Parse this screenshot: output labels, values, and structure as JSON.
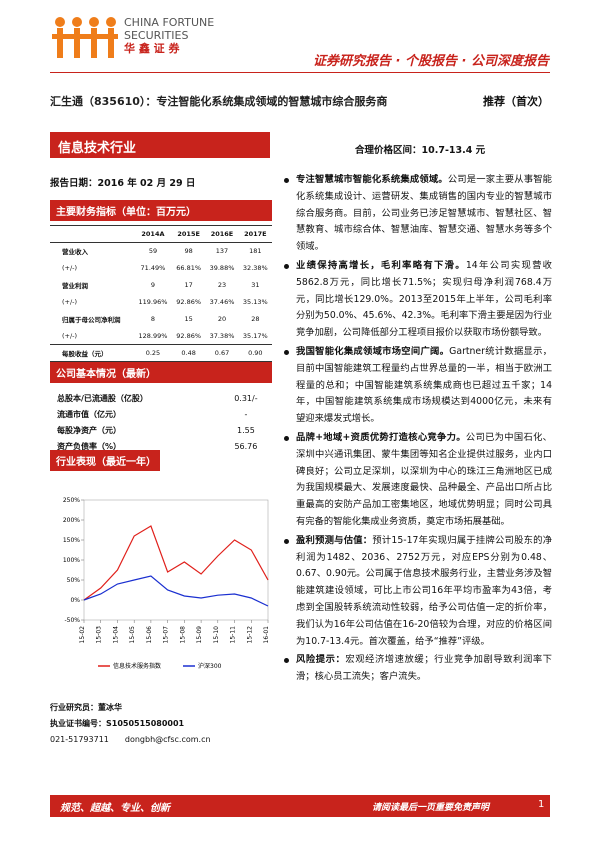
{
  "header": {
    "logo_en_1": "CHINA FORTUNE",
    "logo_en_2": "SECURITIES",
    "logo_cn": "华 鑫 证 券",
    "report_type": "证券研究报告 · 个股报告 · 公司深度报告"
  },
  "title": "汇生通（835610）：专注智能化系统集成领域的智慧城市综合服务商",
  "rating": "推荐（首次）",
  "industry": "信息技术行业",
  "price_range": "合理价格区间：10.7-13.4 元",
  "report_date": "报告日期：2016 年 02 月 29 日",
  "financials": {
    "heading": "主要财务指标（单位：百万元）",
    "columns": [
      "2014A",
      "2015E",
      "2016E",
      "2017E"
    ],
    "rows": [
      {
        "label": "营业收入",
        "cells": [
          "59",
          "98",
          "137",
          "181"
        ]
      },
      {
        "label": "(+/-)",
        "cells": [
          "71.49%",
          "66.81%",
          "39.88%",
          "32.38%"
        ]
      },
      {
        "label": "营业利润",
        "cells": [
          "9",
          "17",
          "23",
          "31"
        ]
      },
      {
        "label": "(+/-)",
        "cells": [
          "119.96%",
          "92.86%",
          "37.46%",
          "35.13%"
        ]
      },
      {
        "label": "归属于母公司净利润",
        "cells": [
          "8",
          "15",
          "20",
          "28"
        ]
      },
      {
        "label": "(+/-)",
        "cells": [
          "128.99%",
          "92.86%",
          "37.38%",
          "35.17%"
        ]
      },
      {
        "label": "每股收益（元）",
        "cells": [
          "0.25",
          "0.48",
          "0.67",
          "0.90"
        ]
      }
    ]
  },
  "basic": {
    "heading": "公司基本情况（最新）",
    "rows": [
      {
        "label": "总股本/已流通股（亿股）",
        "value": "0.31/-"
      },
      {
        "label": "流通市值（亿元）",
        "value": "-"
      },
      {
        "label": "每股净资产（元）",
        "value": "1.55"
      },
      {
        "label": "资产负债率（%）",
        "value": "56.76"
      }
    ]
  },
  "performance": {
    "heading": "行业表现（最近一年）",
    "chart": {
      "type": "line",
      "categories": [
        "15-02",
        "15-03",
        "15-04",
        "15-05",
        "15-06",
        "15-07",
        "15-08",
        "15-09",
        "15-10",
        "15-11",
        "15-12",
        "16-01"
      ],
      "series": [
        {
          "name": "信息技术服务指数",
          "color": "#e0201b",
          "values": [
            0,
            30,
            75,
            160,
            185,
            70,
            95,
            65,
            110,
            150,
            125,
            50
          ]
        },
        {
          "name": "沪深300",
          "color": "#1a2fd0",
          "values": [
            0,
            15,
            40,
            50,
            60,
            25,
            10,
            5,
            12,
            15,
            5,
            -15
          ]
        }
      ],
      "ylim": [
        -50,
        250
      ],
      "yticks": [
        {
          "value": -50,
          "label": "-50%"
        },
        {
          "value": 0,
          "label": "0%"
        },
        {
          "value": 50,
          "label": "50%"
        },
        {
          "value": 100,
          "label": "100%"
        },
        {
          "value": 150,
          "label": "150%"
        },
        {
          "value": 200,
          "label": "200%"
        },
        {
          "value": 250,
          "label": "250%"
        }
      ]
    }
  },
  "analyst": [
    "行业研究员：董冰华",
    "执业证书编号：S1050515080001",
    "021-51793711　　dongbh@cfsc.com.cn"
  ],
  "bullets": [
    {
      "lead": "专注智慧城市智能化系统集成领域。",
      "text": "公司是一家主要从事智能化系统集成设计、运营研发、集成销售的国内专业的智慧城市综合服务商。目前，公司业务已涉足智慧城市、智慧社区、智慧教育、城市综合体、智慧油库、智慧交通、智慧水务等多个领域。"
    },
    {
      "lead": "业绩保持高增长，毛利率略有下滑。",
      "text": "14年公司实现营收5862.8万元，同比增长71.5%；实现归母净利润768.4万元，同比增长129.0%。2013至2015年上半年，公司毛利率分别为50.0%、45.6%、42.3%。毛利率下滑主要是因为行业竞争加剧，公司降低部分工程项目报价以获取市场份额导致。"
    },
    {
      "lead": "我国智能化集成领域市场空间广阔。",
      "text": "Gartner统计数据显示，目前中国智能建筑工程量约占世界总量的一半，相当于欧洲工程量的总和；中国智能建筑系统集成商也已超过五千家；14年，中国智能建筑系统集成市场规模达到4000亿元，未来有望迎来爆发式增长。"
    },
    {
      "lead": "品牌+地域+资质优势打造核心竞争力。",
      "text": "公司已为中国石化、深圳中兴通讯集团、蒙牛集团等知名企业提供过服务，业内口碑良好；公司立足深圳，以深圳为中心的珠江三角洲地区已成为我国规模最大、发展速度最快、品种最全、产品出口所占比重最高的安防产品加工密集地区，地域优势明显；同时公司具有完备的智能化集成业务资质，奠定市场拓展基础。"
    },
    {
      "lead": "盈利预测与估值：",
      "text": "预计15-17年实现归属于挂牌公司股东的净利润为1482、2036、2752万元，对应EPS分别为0.48、0.67、0.90元。公司属于信息技术服务行业，主营业务涉及智能建筑建设领域，可比上市公司16年平均市盈率为43倍，考虑到全国股转系统流动性较弱，给予公司估值一定的折价率，我们认为16年公司估值在16-20倍较为合理，对应的价格区间为10.7-13.4元。首次覆盖，给予“推荐”评级。"
    },
    {
      "lead": "风险提示：",
      "text": "宏观经济增速放缓；行业竞争加剧导致利润率下滑；核心员工流失；客户流失。"
    }
  ],
  "footer": {
    "motto": "规范、超越、专业、创新",
    "disclaimer": "请阅读最后一页重要免责声明",
    "page": "1"
  }
}
